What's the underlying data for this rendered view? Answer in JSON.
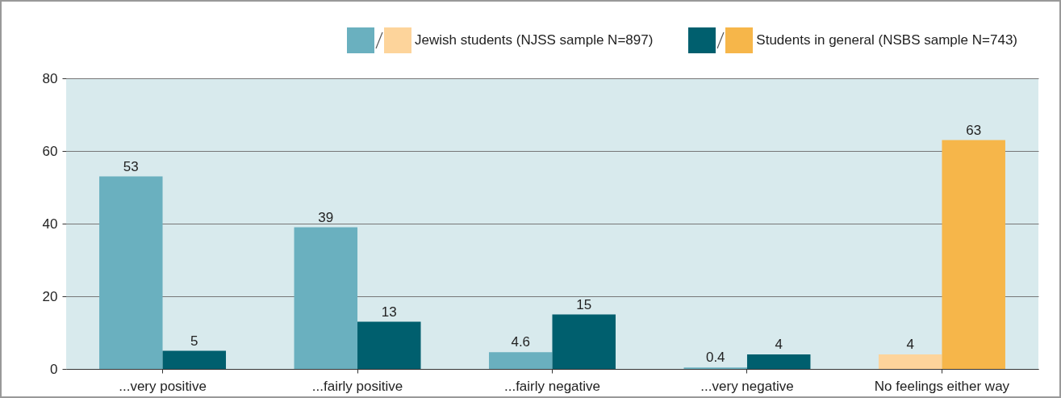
{
  "chart_data": {
    "type": "bar",
    "categories": [
      "...very positive",
      "...fairly positive",
      "...fairly negative",
      "...very negative",
      "No feelings either way"
    ],
    "series": [
      {
        "name": "Jewish students (NJSS sample N=897)",
        "color": "#6ab0bf",
        "colors": [
          "#6ab0bf",
          "#6ab0bf",
          "#6ab0bf",
          "#6ab0bf",
          "#fdd49b"
        ],
        "values": [
          53,
          39,
          4.6,
          0.4,
          4
        ]
      },
      {
        "name": "Students in general (NSBS sample N=743)",
        "color": "#005f6e",
        "colors": [
          "#005f6e",
          "#005f6e",
          "#005f6e",
          "#005f6e",
          "#f6b64a"
        ],
        "values": [
          5,
          13,
          15,
          4,
          63
        ]
      }
    ],
    "ylim": [
      0,
      80
    ],
    "yticks": [
      0,
      20,
      40,
      60,
      80
    ],
    "grid": "y",
    "legend": "top right",
    "data_labels": true
  }
}
